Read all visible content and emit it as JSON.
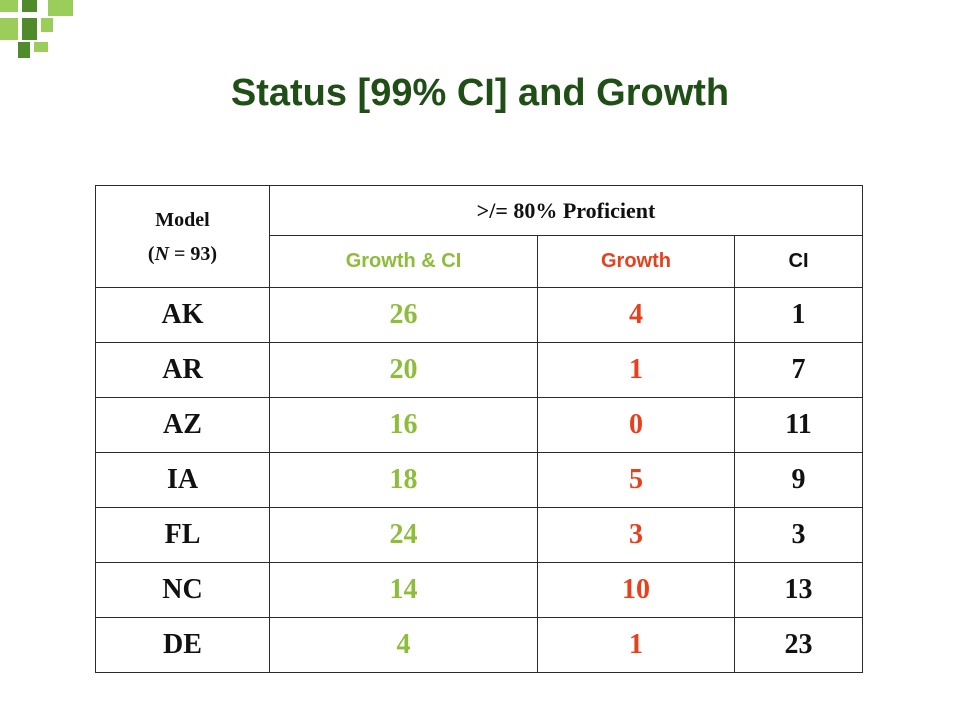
{
  "slide": {
    "title": "Status [99% CI] and Growth"
  },
  "table": {
    "model_label": "Model",
    "model_n": "(N = 93)",
    "group_header": ">/= 80% Proficient",
    "columns": [
      "Growth & CI",
      "Growth",
      "CI"
    ],
    "column_colors": [
      "#8dbd3b",
      "#e8401c",
      "#111111"
    ],
    "rows": [
      {
        "state": "AK",
        "growth_ci": "26",
        "growth": "4",
        "ci": "1"
      },
      {
        "state": "AR",
        "growth_ci": "20",
        "growth": "1",
        "ci": "7"
      },
      {
        "state": "AZ",
        "growth_ci": "16",
        "growth": "0",
        "ci": "11"
      },
      {
        "state": "IA",
        "growth_ci": "18",
        "growth": "5",
        "ci": "9"
      },
      {
        "state": "FL",
        "growth_ci": "24",
        "growth": "3",
        "ci": "3"
      },
      {
        "state": "NC",
        "growth_ci": "14",
        "growth": "10",
        "ci": "13"
      },
      {
        "state": "DE",
        "growth_ci": "4",
        "growth": "1",
        "ci": "23"
      }
    ]
  }
}
